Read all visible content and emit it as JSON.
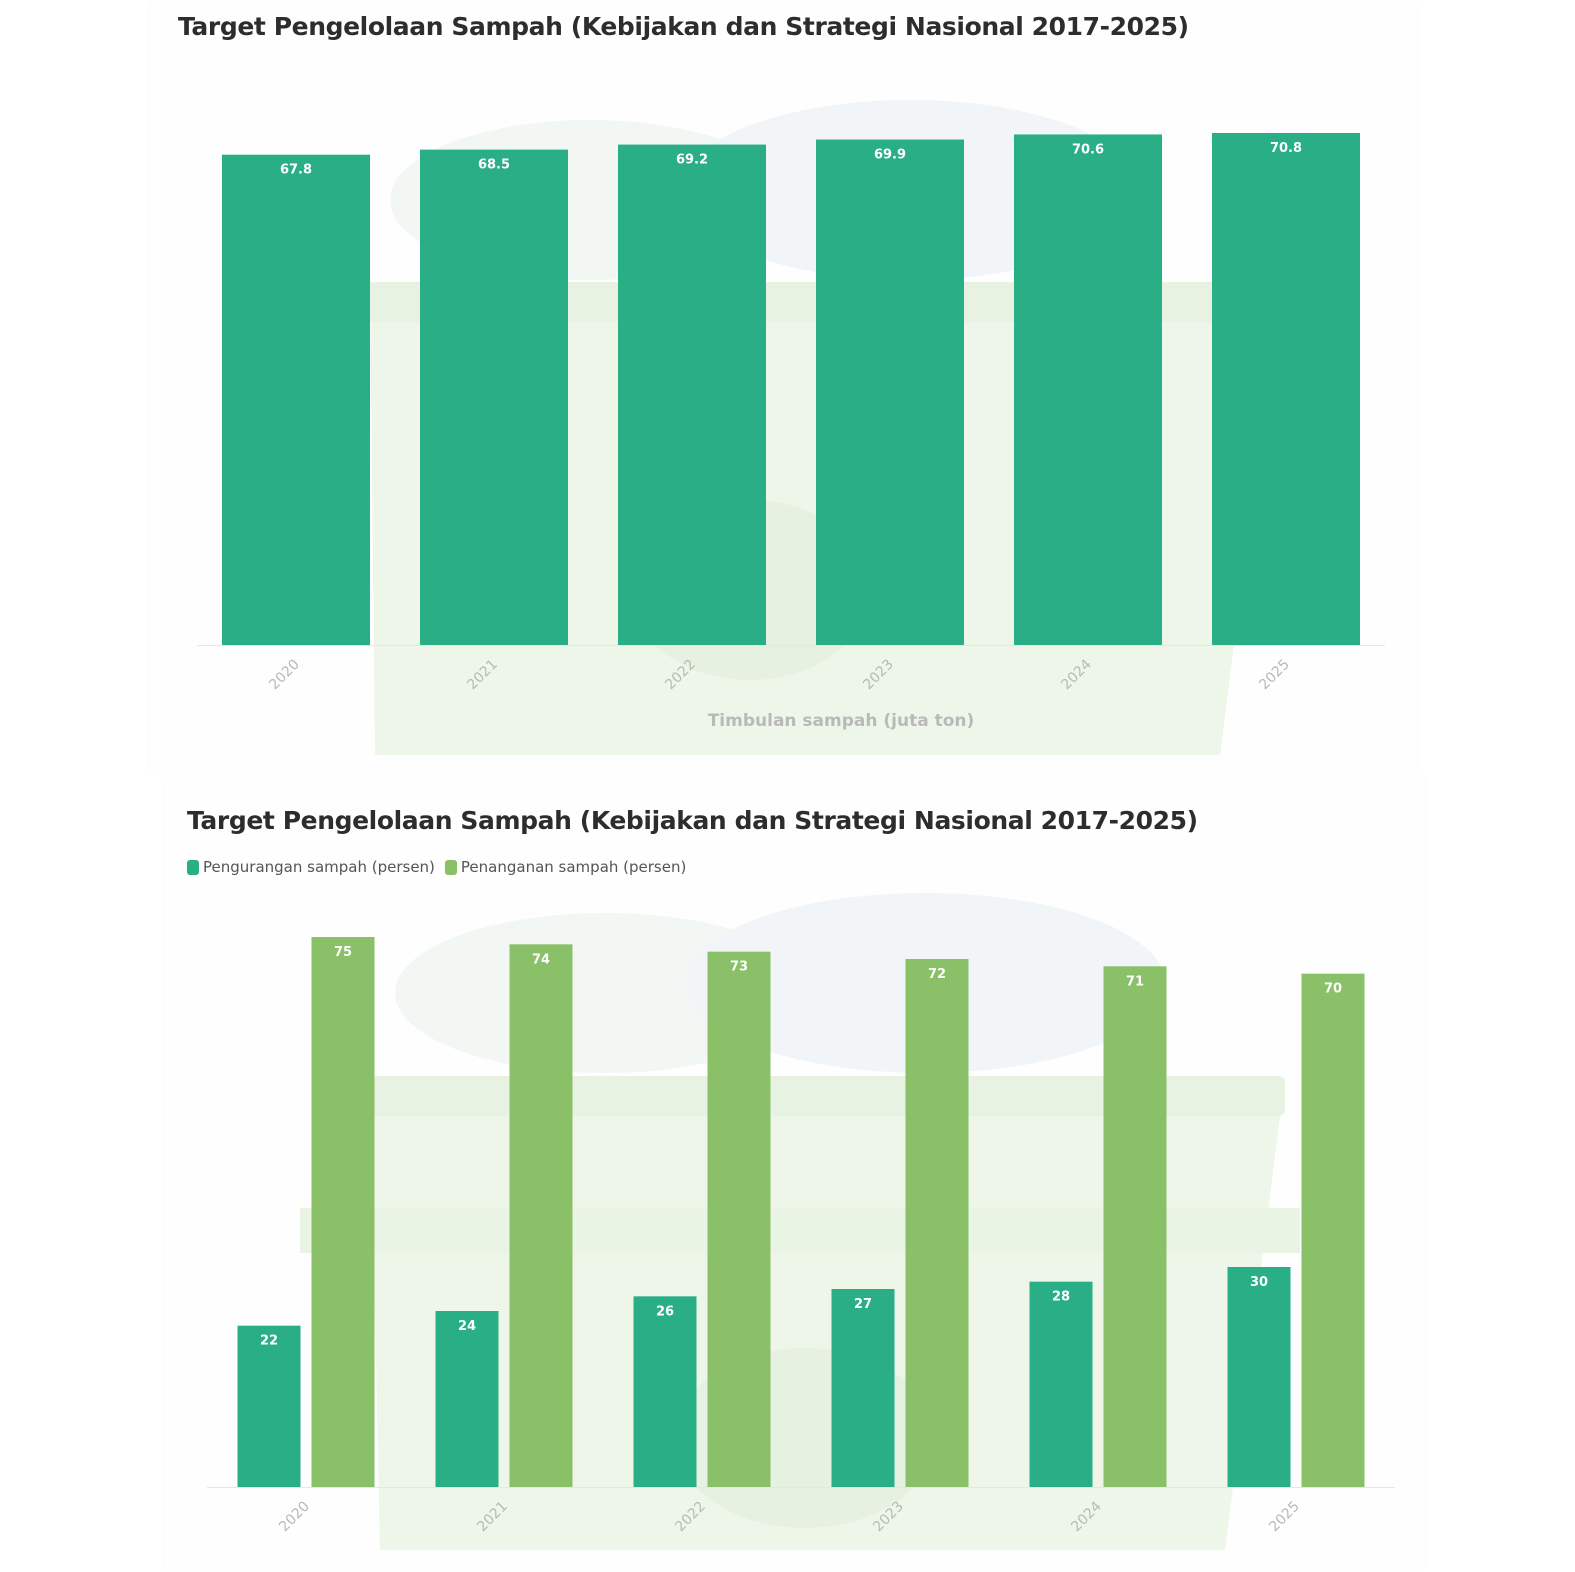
{
  "colors": {
    "dark_green": "#2aae86",
    "light_green": "#8ac068",
    "background_illustration": "#eef6ea"
  },
  "chart_data": [
    {
      "type": "bar",
      "title": "Target Pengelolaan Sampah (Kebijakan dan Strategi Nasional 2017-2025)",
      "xlabel": "Timbulan sampah (juta ton)",
      "ylabel": "",
      "categories": [
        "2020",
        "2021",
        "2022",
        "2023",
        "2024",
        "2025"
      ],
      "values": [
        67.8,
        68.5,
        69.2,
        69.9,
        70.6,
        70.8
      ],
      "ylim": [
        0,
        70.8
      ],
      "grid": false,
      "data_labels": true
    },
    {
      "type": "bar",
      "title": "Target Pengelolaan Sampah (Kebijakan dan Strategi Nasional 2017-2025)",
      "xlabel": "",
      "ylabel": "",
      "categories": [
        "2020",
        "2021",
        "2022",
        "2023",
        "2024",
        "2025"
      ],
      "series": [
        {
          "name": "Pengurangan sampah (persen)",
          "color": "#2aae86",
          "values": [
            22,
            24,
            26,
            27,
            28,
            30
          ]
        },
        {
          "name": "Penanganan sampah (persen)",
          "color": "#8ac068",
          "values": [
            75,
            74,
            73,
            72,
            71,
            70
          ]
        }
      ],
      "ylim": [
        0,
        75
      ],
      "legend": "top-left",
      "grid": false,
      "data_labels": true
    }
  ]
}
